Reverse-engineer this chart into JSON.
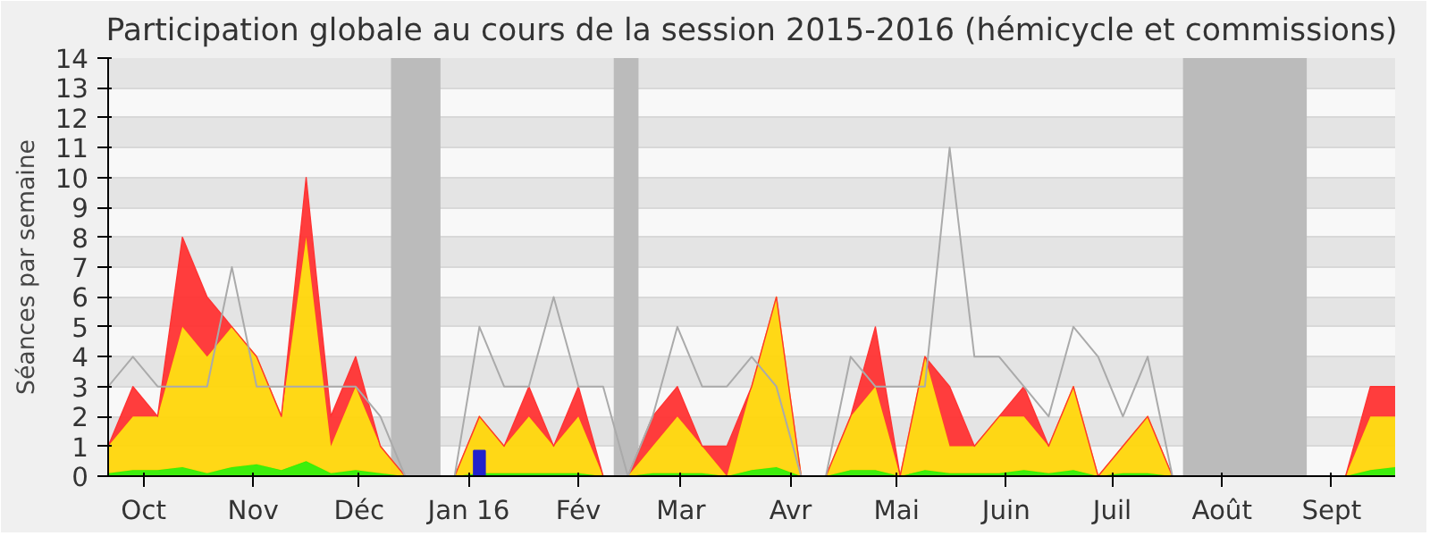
{
  "chart_data": {
    "type": "area",
    "stacked": true,
    "title": "Participation globale au cours de la session 2015-2016 (hémicycle et commissions)",
    "ylabel": "Séances par semaine",
    "x": [
      "2015-09-21",
      "2015-09-28",
      "2015-10-05",
      "2015-10-12",
      "2015-10-19",
      "2015-10-26",
      "2015-11-02",
      "2015-11-09",
      "2015-11-16",
      "2015-11-23",
      "2015-11-30",
      "2015-12-07",
      "2015-12-14",
      "2015-12-21",
      "2015-12-28",
      "2016-01-04",
      "2016-01-11",
      "2016-01-18",
      "2016-01-25",
      "2016-02-01",
      "2016-02-08",
      "2016-02-15",
      "2016-02-22",
      "2016-02-29",
      "2016-03-07",
      "2016-03-14",
      "2016-03-21",
      "2016-03-28",
      "2016-04-04",
      "2016-04-11",
      "2016-04-18",
      "2016-04-25",
      "2016-05-02",
      "2016-05-09",
      "2016-05-16",
      "2016-05-23",
      "2016-05-30",
      "2016-06-06",
      "2016-06-13",
      "2016-06-20",
      "2016-06-27",
      "2016-07-04",
      "2016-07-11",
      "2016-07-18",
      "2016-07-25",
      "2016-08-01",
      "2016-08-08",
      "2016-08-15",
      "2016-08-22",
      "2016-08-29",
      "2016-09-05",
      "2016-09-12",
      "2016-09-19"
    ],
    "xlim": [
      "2015-09-21",
      "2016-09-19"
    ],
    "ylim": [
      0,
      14
    ],
    "yticks": [
      0,
      1,
      2,
      3,
      4,
      5,
      6,
      7,
      8,
      9,
      10,
      11,
      12,
      13,
      14
    ],
    "xticks": [
      {
        "value": "2015-10-01",
        "label": "Oct"
      },
      {
        "value": "2015-11-01",
        "label": "Nov"
      },
      {
        "value": "2015-12-01",
        "label": "Déc"
      },
      {
        "value": "2016-01-01",
        "label": "Jan 16"
      },
      {
        "value": "2016-02-01",
        "label": "Fév"
      },
      {
        "value": "2016-03-01",
        "label": "Mar"
      },
      {
        "value": "2016-04-01",
        "label": "Avr"
      },
      {
        "value": "2016-05-01",
        "label": "Mai"
      },
      {
        "value": "2016-06-01",
        "label": "Juin"
      },
      {
        "value": "2016-07-01",
        "label": "Juil"
      },
      {
        "value": "2016-08-01",
        "label": "Août"
      },
      {
        "value": "2016-09-01",
        "label": "Sept"
      }
    ],
    "grid": "y",
    "series": [
      {
        "color": "#33ee00",
        "values": [
          0.1,
          0.2,
          0.2,
          0.3,
          0.1,
          0.3,
          0.4,
          0.2,
          0.5,
          0.1,
          0.2,
          0.1,
          0,
          0,
          0,
          0.1,
          0.1,
          0.1,
          0.1,
          0.1,
          0,
          0,
          0.1,
          0.1,
          0.1,
          0,
          0.2,
          0.3,
          0,
          0,
          0.2,
          0.2,
          0,
          0.2,
          0.1,
          0.1,
          0.1,
          0.2,
          0.1,
          0.2,
          0,
          0.1,
          0.1,
          0,
          0,
          0,
          0,
          0,
          0,
          0,
          0,
          0.2,
          0.3
        ]
      },
      {
        "color": "#ffd60a",
        "values": [
          0.9,
          1.8,
          1.8,
          4.7,
          3.9,
          4.7,
          3.6,
          1.8,
          7.5,
          0.9,
          2.8,
          0.9,
          0,
          0,
          0,
          1.9,
          0.9,
          1.9,
          0.9,
          1.9,
          0,
          0,
          0.9,
          1.9,
          0.9,
          0,
          2.8,
          5.7,
          0,
          0,
          1.8,
          2.8,
          0,
          3.8,
          0.9,
          0.9,
          1.9,
          1.8,
          0.9,
          2.8,
          0,
          0.9,
          1.9,
          0,
          0,
          0,
          0,
          0,
          0,
          0,
          0,
          1.8,
          1.7
        ]
      },
      {
        "color": "#ff3333",
        "values": [
          0,
          1,
          0,
          3,
          2,
          0,
          0,
          0,
          2,
          1,
          1,
          0,
          0,
          0,
          0,
          0,
          0,
          1,
          0,
          1,
          0,
          0,
          1,
          1,
          0,
          1,
          0,
          0,
          0,
          0,
          0,
          2,
          0,
          0,
          2,
          0,
          0,
          1,
          0,
          0,
          0,
          0,
          0,
          0,
          0,
          0,
          0,
          0,
          0,
          0,
          0,
          1,
          1
        ]
      },
      {
        "type": "line",
        "color": "#aaaaaa",
        "values": [
          3,
          4,
          3,
          3,
          3,
          7,
          3,
          3,
          3,
          3,
          3,
          2,
          0,
          0,
          0,
          5,
          3,
          3,
          6,
          3,
          3,
          0,
          2,
          5,
          3,
          3,
          4,
          3,
          0,
          0,
          4,
          3,
          3,
          3,
          11,
          4,
          4,
          3,
          2,
          5,
          4,
          2,
          4,
          0,
          null,
          null,
          null,
          null,
          null,
          null,
          null,
          null,
          null
        ]
      },
      {
        "type": "bar",
        "color": "#2222cc",
        "x": [
          "2016-01-04"
        ],
        "values": [
          0.85
        ]
      }
    ],
    "bands": [
      {
        "axis": "x",
        "from": "2015-12-10",
        "to": "2015-12-24",
        "color": "#bbbbbb"
      },
      {
        "axis": "x",
        "from": "2016-02-11",
        "to": "2016-02-18",
        "color": "#bbbbbb"
      },
      {
        "axis": "x",
        "from": "2016-07-21",
        "to": "2016-08-25",
        "color": "#bbbbbb"
      }
    ]
  }
}
